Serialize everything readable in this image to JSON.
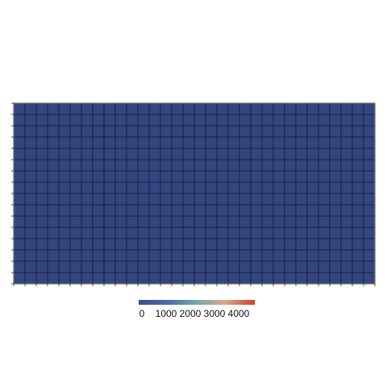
{
  "chart_data": {
    "type": "heatmap",
    "rows": 16,
    "columns": 32,
    "values": "uniform",
    "cell_value": 0,
    "color_scale": {
      "stops": [
        "#3b4d8a",
        "#4a6aa0",
        "#73a9a9",
        "#d9a88a",
        "#d93a2f"
      ],
      "min": 0,
      "max": 4800
    },
    "colorbar": {
      "ticks": [
        0,
        1000,
        2000,
        3000,
        4000
      ],
      "tick_labels": [
        "0",
        "1000",
        "2000",
        "3000",
        "4000"
      ]
    },
    "colors": {
      "cell": "#33467e",
      "grid_line": "#15203e",
      "frame": "#6b6b6b",
      "tick": "#222222"
    }
  }
}
